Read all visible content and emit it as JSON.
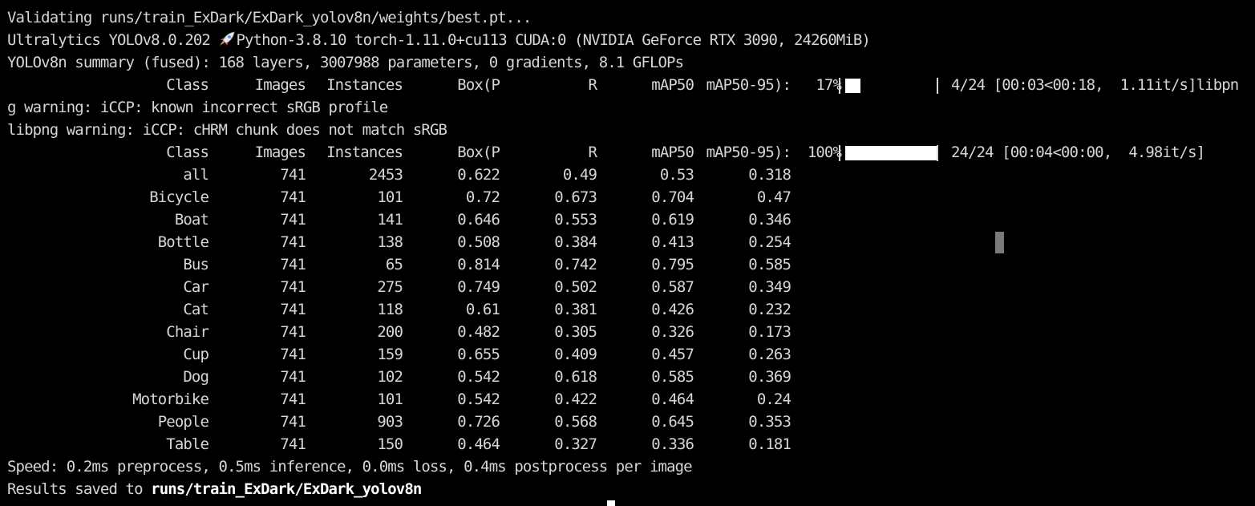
{
  "log": {
    "validating": "Validating runs/train_ExDark/ExDark_yolov8n/weights/best.pt...",
    "env_prefix": "Ultralytics YOLOv8.0.202 ",
    "env_suffix": "Python-3.8.10 torch-1.11.0+cu113 CUDA:0 (NVIDIA GeForce RTX 3090, 24260MiB)",
    "summary": "YOLOv8n summary (fused): 168 layers, 3007988 parameters, 0 gradients, 8.1 GFLOPs",
    "libpng_wrap": "g warning: iCCP: known incorrect sRGB profile",
    "libpng_chrm": "libpng warning: iCCP: cHRM chunk does not match sRGB",
    "speed": "Speed: 0.2ms preprocess, 0.5ms inference, 0.0ms loss, 0.4ms postprocess per image",
    "results_prefix": "Results saved to ",
    "results_path": "runs/train_ExDark/ExDark_yolov8n"
  },
  "headers": [
    "Class",
    "Images",
    "Instances",
    "Box(P",
    "R",
    "mAP50",
    "mAP50-95):"
  ],
  "progress": [
    {
      "percent_label": "17%",
      "fraction": 0.17,
      "status": "4/24 [00:03<00:18,  1.11it/s]libpn"
    },
    {
      "percent_label": "100%",
      "fraction": 1.0,
      "status": "24/24 [00:04<00:00,  4.98it/s]"
    }
  ],
  "rows": [
    [
      "all",
      "741",
      "2453",
      "0.622",
      "0.49",
      "0.53",
      "0.318"
    ],
    [
      "Bicycle",
      "741",
      "101",
      "0.72",
      "0.673",
      "0.704",
      "0.47"
    ],
    [
      "Boat",
      "741",
      "141",
      "0.646",
      "0.553",
      "0.619",
      "0.346"
    ],
    [
      "Bottle",
      "741",
      "138",
      "0.508",
      "0.384",
      "0.413",
      "0.254"
    ],
    [
      "Bus",
      "741",
      "65",
      "0.814",
      "0.742",
      "0.795",
      "0.585"
    ],
    [
      "Car",
      "741",
      "275",
      "0.749",
      "0.502",
      "0.587",
      "0.349"
    ],
    [
      "Cat",
      "741",
      "118",
      "0.61",
      "0.381",
      "0.426",
      "0.232"
    ],
    [
      "Chair",
      "741",
      "200",
      "0.482",
      "0.305",
      "0.326",
      "0.173"
    ],
    [
      "Cup",
      "741",
      "159",
      "0.655",
      "0.409",
      "0.457",
      "0.263"
    ],
    [
      "Dog",
      "741",
      "102",
      "0.542",
      "0.618",
      "0.585",
      "0.369"
    ],
    [
      "Motorbike",
      "741",
      "101",
      "0.542",
      "0.422",
      "0.464",
      "0.24"
    ],
    [
      "People",
      "741",
      "903",
      "0.726",
      "0.568",
      "0.645",
      "0.353"
    ],
    [
      "Table",
      "741",
      "150",
      "0.464",
      "0.327",
      "0.336",
      "0.181"
    ]
  ],
  "icons": {
    "rocket": "rocket-icon"
  },
  "colors": {
    "background": "#000000",
    "text": "#d6d6d6",
    "bar_fill": "#ffffff"
  }
}
